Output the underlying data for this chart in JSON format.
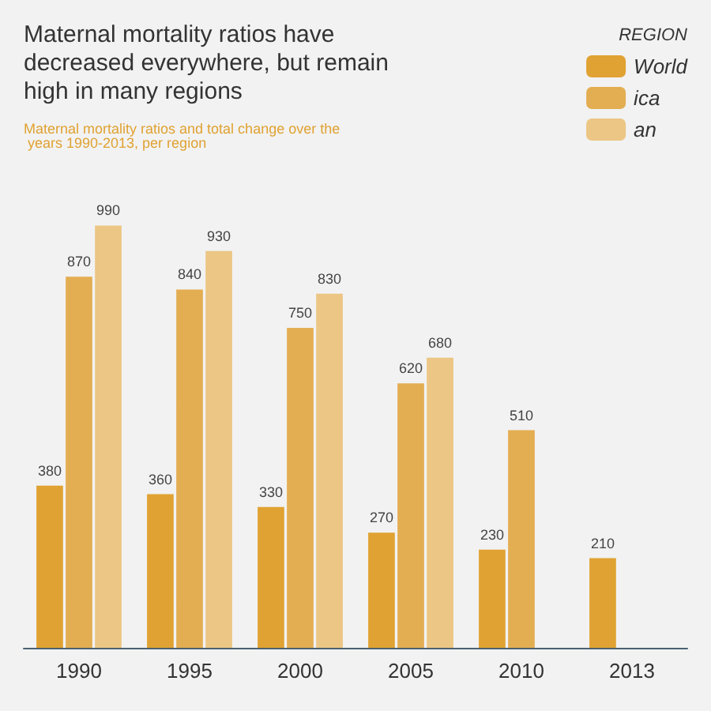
{
  "chart_data": {
    "type": "bar",
    "title": "Maternal mortality ratios have decreased everywhere, but remain high in many regions",
    "subtitle": "Maternal mortality ratios and total change over the years 1990-2013, per region",
    "legend_title": "REGION",
    "categories": [
      "1990",
      "1995",
      "2000",
      "2005",
      "2010",
      "2013"
    ],
    "series": [
      {
        "name": "World",
        "color": "#e0a232",
        "values": [
          380,
          360,
          330,
          270,
          230,
          210
        ]
      },
      {
        "name": "ica",
        "color": "#e3ae52",
        "values": [
          870,
          840,
          750,
          620,
          510,
          null
        ]
      },
      {
        "name": "an",
        "color": "#ecc684",
        "values": [
          990,
          930,
          830,
          680,
          null,
          null
        ]
      }
    ],
    "data_labels": true,
    "legend": "top right"
  }
}
